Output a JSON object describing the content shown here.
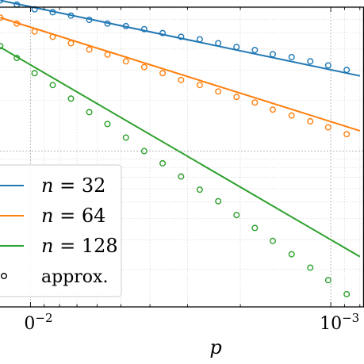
{
  "chart_data": {
    "type": "line",
    "x_scale": "log",
    "x_reversed": true,
    "y_scale": "log",
    "xlabel": "p",
    "ylabel": "",
    "x_range": [
      0.01263,
      0.000775
    ],
    "y_range_log10": [
      -0.15,
      -1.92
    ],
    "x_tick_labels": [
      {
        "value": 0.01,
        "base": "0",
        "exp": "−2"
      },
      {
        "value": 0.001,
        "base": "10",
        "exp": "−3"
      }
    ],
    "grid": true,
    "legend_placement": "bottom-left",
    "series": [
      {
        "name": "n = 32",
        "name_var": "n",
        "name_val": "32",
        "color": "#1f77b4",
        "line": {
          "x": [
            0.0126,
            0.0008
          ],
          "y": [
            0.7762,
            0.278
          ]
        },
        "approx": {
          "x": [
            0.0126,
            0.0111,
            0.00969,
            0.00843,
            0.00733,
            0.00637,
            0.00554,
            0.00481,
            0.00418,
            0.00363,
            0.00315,
            0.00273,
            0.00237,
            0.00206,
            0.00179,
            0.00156,
            0.00135,
            0.00117,
            0.00102,
            0.000885
          ],
          "y": [
            0.7762,
            0.7328,
            0.6871,
            0.6607,
            0.631,
            0.5958,
            0.5662,
            0.547,
            0.5248,
            0.4977,
            0.4732,
            0.4571,
            0.4335,
            0.4119,
            0.3954,
            0.3733,
            0.3589,
            0.3388,
            0.3206,
            0.3015
          ]
        }
      },
      {
        "name": "n = 64",
        "name_var": "n",
        "name_val": "64",
        "color": "#ff7f0e",
        "line": {
          "x": [
            0.0126,
            0.0008
          ],
          "y": [
            0.6138,
            0.1318
          ]
        },
        "approx": {
          "x": [
            0.0126,
            0.0111,
            0.00969,
            0.00843,
            0.00733,
            0.00637,
            0.00554,
            0.00481,
            0.00418,
            0.00363,
            0.00315,
            0.00273,
            0.00237,
            0.00206,
            0.00179,
            0.00156,
            0.00135,
            0.00117,
            0.00102,
            0.000885
          ],
          "y": [
            0.6138,
            0.5662,
            0.5083,
            0.4732,
            0.4335,
            0.3981,
            0.3715,
            0.3388,
            0.3133,
            0.2884,
            0.263,
            0.2455,
            0.2249,
            0.2089,
            0.1936,
            0.1758,
            0.1622,
            0.15,
            0.138,
            0.1259
          ]
        }
      },
      {
        "name": "n = 128",
        "name_var": "n",
        "name_val": "128",
        "color": "#2ca02c",
        "line": {
          "x": [
            0.0126,
            0.0008
          ],
          "y": [
            0.4102,
            0.0238
          ]
        },
        "approx": {
          "x": [
            0.0126,
            0.0111,
            0.00969,
            0.00843,
            0.00733,
            0.00637,
            0.00554,
            0.00481,
            0.00418,
            0.00363,
            0.00315,
            0.00273,
            0.00237,
            0.00206,
            0.00179,
            0.00156,
            0.00135,
            0.00117,
            0.00102,
            0.000885
          ],
          "y": [
            0.4169,
            0.3548,
            0.2884,
            0.2455,
            0.2042,
            0.1698,
            0.1445,
            0.1202,
            0.1,
            0.0847,
            0.0708,
            0.0592,
            0.0506,
            0.0419,
            0.0352,
            0.0295,
            0.0246,
            0.0205,
            0.0173,
            0.0143
          ]
        }
      }
    ],
    "legend_entries": [
      {
        "label": "approx.",
        "marker": "open-circle",
        "color": "#000000"
      }
    ]
  }
}
